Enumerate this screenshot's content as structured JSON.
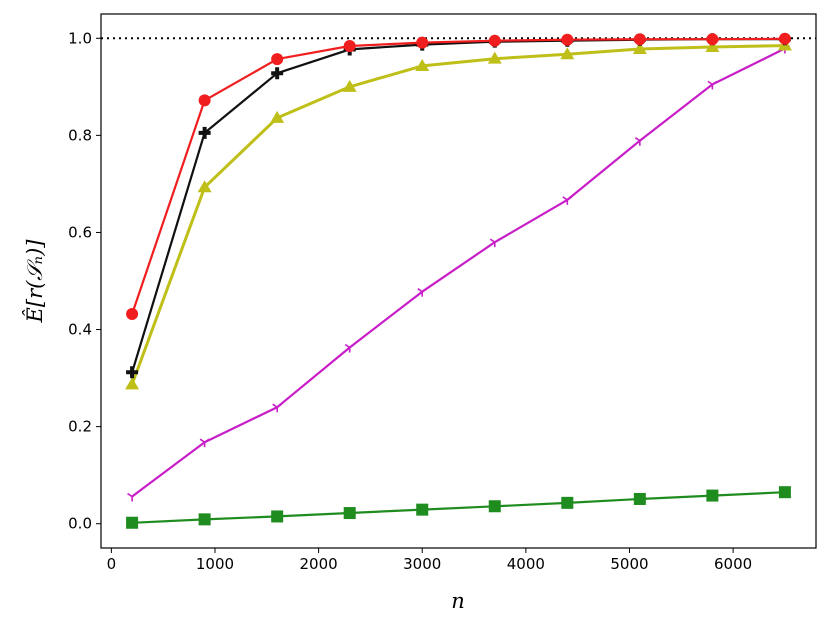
{
  "chart_data": {
    "type": "line",
    "title": "",
    "xlabel": "n",
    "ylabel": "Ê[r(𝒮ₙ)]",
    "xlim": [
      -100,
      6800
    ],
    "ylim": [
      -0.05,
      1.05
    ],
    "xticks": [
      0,
      1000,
      2000,
      3000,
      4000,
      5000,
      6000
    ],
    "xtick_labels": [
      "0",
      "1000",
      "2000",
      "3000",
      "4000",
      "5000",
      "6000"
    ],
    "yticks": [
      0.0,
      0.2,
      0.4,
      0.6,
      0.8,
      1.0
    ],
    "ytick_labels": [
      "0.0",
      "0.2",
      "0.4",
      "0.6",
      "0.8",
      "1.0"
    ],
    "grid": false,
    "reference_line": {
      "y": 1.0,
      "style": "dotted",
      "color": "#000000"
    },
    "x": [
      200,
      900,
      1600,
      2300,
      3000,
      3700,
      4400,
      5100,
      5800,
      6500
    ],
    "series": [
      {
        "color": "#1f8c1f",
        "marker": "square",
        "values": [
          0.002,
          0.009,
          0.015,
          0.022,
          0.029,
          0.036,
          0.043,
          0.051,
          0.058,
          0.065
        ]
      },
      {
        "color": "#c81ec8",
        "marker": "tri-down",
        "values": [
          0.056,
          0.168,
          0.24,
          0.363,
          0.478,
          0.58,
          0.667,
          0.789,
          0.905,
          0.979
        ]
      },
      {
        "color": "#bfbf19",
        "marker": "triangle",
        "values": [
          0.287,
          0.693,
          0.836,
          0.9,
          0.943,
          0.958,
          0.967,
          0.978,
          0.982,
          0.985
        ]
      },
      {
        "color": "#111111",
        "marker": "plus",
        "values": [
          0.312,
          0.805,
          0.928,
          0.977,
          0.987,
          0.993,
          0.995,
          0.997,
          0.998,
          0.998
        ]
      },
      {
        "color": "#f01e1e",
        "marker": "circle",
        "values": [
          0.432,
          0.872,
          0.957,
          0.984,
          0.991,
          0.995,
          0.997,
          0.998,
          0.998,
          0.999
        ]
      }
    ]
  }
}
